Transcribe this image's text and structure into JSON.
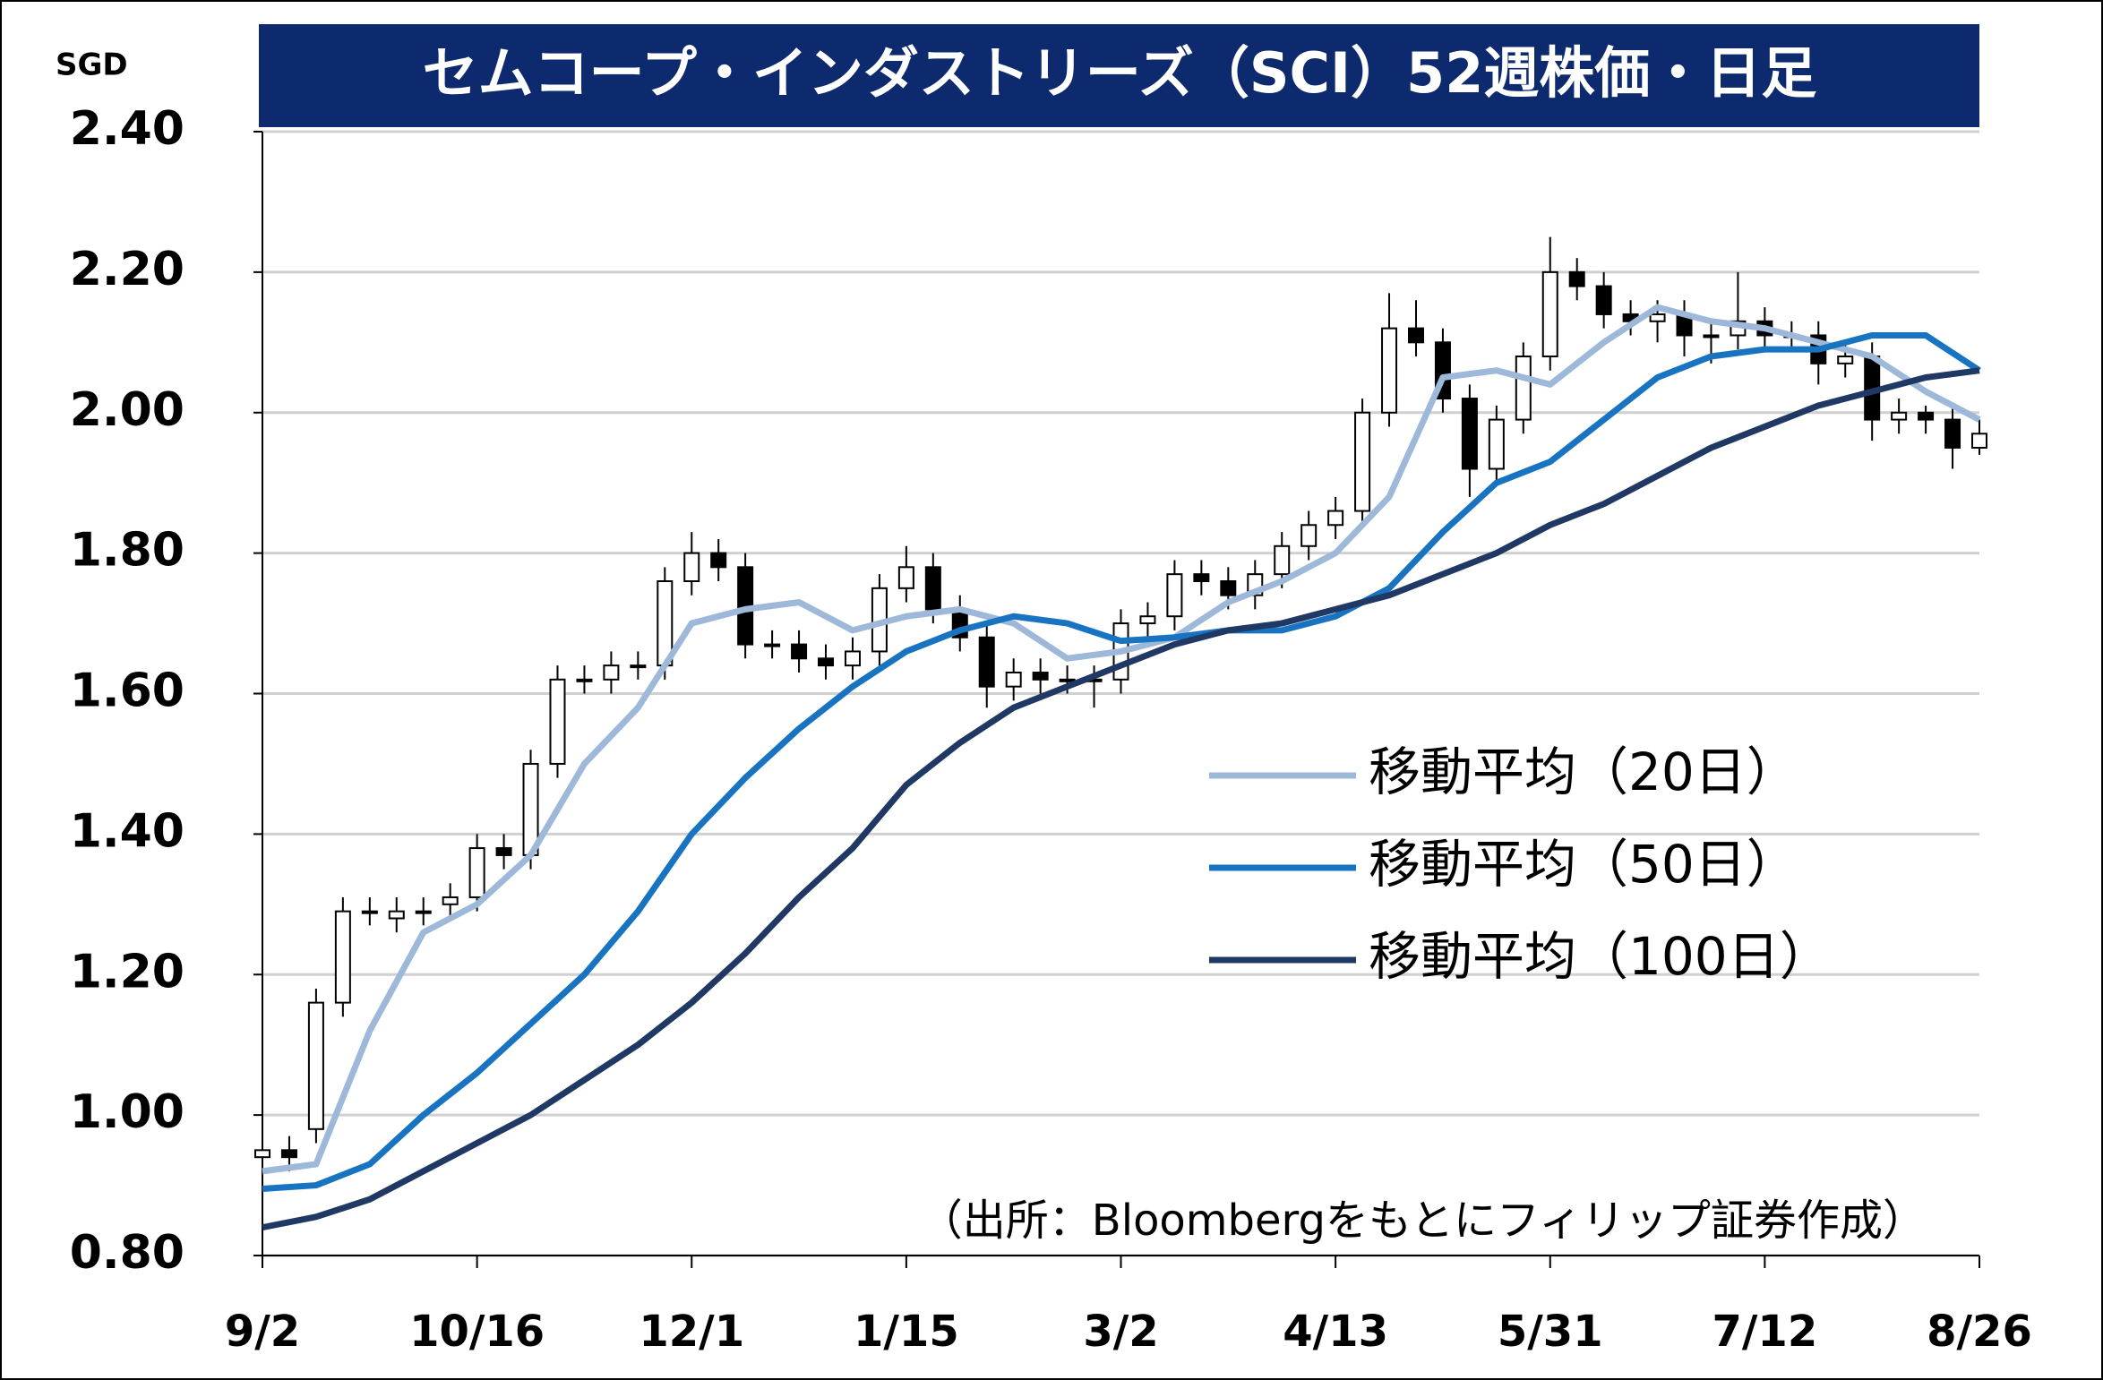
{
  "chart_data": {
    "type": "candlestick",
    "title": "セムコープ・インダストリーズ（SCI）52週株価・日足",
    "y_unit": "SGD",
    "source": "（出所：Bloombergをもとにフィリップ証券作成）",
    "xlim": [
      0,
      256
    ],
    "xticks": [
      {
        "value": 0,
        "label": "9/2"
      },
      {
        "value": 32,
        "label": "10/16"
      },
      {
        "value": 64,
        "label": "12/1"
      },
      {
        "value": 96,
        "label": "1/15"
      },
      {
        "value": 128,
        "label": "3/2"
      },
      {
        "value": 160,
        "label": "4/13"
      },
      {
        "value": 192,
        "label": "5/31"
      },
      {
        "value": 224,
        "label": "7/12"
      },
      {
        "value": 256,
        "label": "8/26"
      }
    ],
    "ylim": [
      0.8,
      2.4
    ],
    "yticks": [
      {
        "value": 0.8,
        "label": "0.80"
      },
      {
        "value": 1.0,
        "label": "1.00"
      },
      {
        "value": 1.2,
        "label": "1.20"
      },
      {
        "value": 1.4,
        "label": "1.40"
      },
      {
        "value": 1.6,
        "label": "1.60"
      },
      {
        "value": 1.8,
        "label": "1.80"
      },
      {
        "value": 2.0,
        "label": "2.00"
      },
      {
        "value": 2.2,
        "label": "2.20"
      },
      {
        "value": 2.4,
        "label": "2.40"
      }
    ],
    "grid": true,
    "legend": "right",
    "up_color": "#ffffff",
    "down_color": "#000000",
    "x": [
      0,
      4,
      8,
      12,
      16,
      20,
      24,
      28,
      32,
      36,
      40,
      44,
      48,
      52,
      56,
      60,
      64,
      68,
      72,
      76,
      80,
      84,
      88,
      92,
      96,
      100,
      104,
      108,
      112,
      116,
      120,
      124,
      128,
      132,
      136,
      140,
      144,
      148,
      152,
      156,
      160,
      164,
      168,
      172,
      176,
      180,
      184,
      188,
      192,
      196,
      200,
      204,
      208,
      212,
      216,
      220,
      224,
      228,
      232,
      236,
      240,
      244,
      248,
      252,
      256
    ],
    "open": [
      0.94,
      0.95,
      0.98,
      1.16,
      1.29,
      1.28,
      1.29,
      1.3,
      1.31,
      1.38,
      1.37,
      1.5,
      1.62,
      1.62,
      1.64,
      1.64,
      1.76,
      1.8,
      1.78,
      1.67,
      1.67,
      1.65,
      1.64,
      1.66,
      1.75,
      1.78,
      1.72,
      1.68,
      1.61,
      1.63,
      1.62,
      1.62,
      1.62,
      1.7,
      1.71,
      1.77,
      1.76,
      1.74,
      1.77,
      1.81,
      1.84,
      1.86,
      2.0,
      2.12,
      2.1,
      2.02,
      1.92,
      1.99,
      2.08,
      2.2,
      2.18,
      2.14,
      2.13,
      2.14,
      2.11,
      2.11,
      2.13,
      2.11,
      2.11,
      2.07,
      2.08,
      1.99,
      2.0,
      1.99,
      1.95
    ],
    "high": [
      0.97,
      0.97,
      1.18,
      1.31,
      1.31,
      1.31,
      1.31,
      1.33,
      1.4,
      1.4,
      1.52,
      1.64,
      1.64,
      1.66,
      1.66,
      1.78,
      1.83,
      1.82,
      1.8,
      1.69,
      1.69,
      1.67,
      1.68,
      1.77,
      1.81,
      1.8,
      1.74,
      1.7,
      1.65,
      1.65,
      1.64,
      1.64,
      1.72,
      1.73,
      1.79,
      1.79,
      1.78,
      1.79,
      1.83,
      1.86,
      1.88,
      2.02,
      2.17,
      2.16,
      2.12,
      2.04,
      2.01,
      2.1,
      2.25,
      2.22,
      2.2,
      2.16,
      2.16,
      2.16,
      2.13,
      2.2,
      2.15,
      2.13,
      2.13,
      2.1,
      2.1,
      2.02,
      2.01,
      2.01,
      1.99
    ],
    "low": [
      0.92,
      0.92,
      0.96,
      1.14,
      1.27,
      1.26,
      1.27,
      1.28,
      1.29,
      1.35,
      1.35,
      1.48,
      1.6,
      1.6,
      1.62,
      1.62,
      1.74,
      1.76,
      1.65,
      1.65,
      1.63,
      1.62,
      1.62,
      1.64,
      1.73,
      1.7,
      1.66,
      1.58,
      1.59,
      1.6,
      1.6,
      1.58,
      1.6,
      1.68,
      1.69,
      1.74,
      1.72,
      1.72,
      1.75,
      1.79,
      1.82,
      1.84,
      1.98,
      2.08,
      2.0,
      1.88,
      1.9,
      1.97,
      2.06,
      2.16,
      2.12,
      2.11,
      2.1,
      2.08,
      2.07,
      2.09,
      2.09,
      2.09,
      2.04,
      2.05,
      1.96,
      1.97,
      1.97,
      1.92,
      1.94
    ],
    "close": [
      0.95,
      0.94,
      1.16,
      1.29,
      1.29,
      1.29,
      1.29,
      1.31,
      1.38,
      1.37,
      1.5,
      1.62,
      1.62,
      1.64,
      1.64,
      1.76,
      1.8,
      1.78,
      1.67,
      1.67,
      1.65,
      1.64,
      1.66,
      1.75,
      1.78,
      1.72,
      1.68,
      1.61,
      1.63,
      1.62,
      1.62,
      1.62,
      1.7,
      1.71,
      1.77,
      1.76,
      1.74,
      1.77,
      1.81,
      1.84,
      1.86,
      2.0,
      2.12,
      2.1,
      2.02,
      1.92,
      1.99,
      2.08,
      2.2,
      2.18,
      2.14,
      2.13,
      2.14,
      2.11,
      2.11,
      2.13,
      2.11,
      2.11,
      2.07,
      2.08,
      1.99,
      2.0,
      1.99,
      1.95,
      1.97
    ],
    "series": [
      {
        "name": "移動平均（20日）",
        "color": "#9db8d9",
        "x": [
          0,
          8,
          16,
          24,
          32,
          40,
          48,
          56,
          64,
          72,
          80,
          88,
          96,
          104,
          112,
          120,
          128,
          136,
          144,
          152,
          160,
          168,
          176,
          184,
          192,
          200,
          208,
          216,
          224,
          232,
          240,
          248,
          256
        ],
        "values": [
          0.92,
          0.93,
          1.12,
          1.26,
          1.3,
          1.37,
          1.5,
          1.58,
          1.7,
          1.72,
          1.73,
          1.69,
          1.71,
          1.72,
          1.7,
          1.65,
          1.66,
          1.68,
          1.73,
          1.76,
          1.8,
          1.88,
          2.05,
          2.06,
          2.04,
          2.1,
          2.15,
          2.13,
          2.12,
          2.1,
          2.08,
          2.03,
          1.99
        ]
      },
      {
        "name": "移動平均（50日）",
        "color": "#1874c1",
        "x": [
          0,
          8,
          16,
          24,
          32,
          40,
          48,
          56,
          64,
          72,
          80,
          88,
          96,
          104,
          112,
          120,
          128,
          136,
          144,
          152,
          160,
          168,
          176,
          184,
          192,
          200,
          208,
          216,
          224,
          232,
          240,
          248,
          256
        ],
        "values": [
          0.895,
          0.9,
          0.93,
          1.0,
          1.06,
          1.13,
          1.2,
          1.29,
          1.4,
          1.48,
          1.55,
          1.61,
          1.66,
          1.69,
          1.71,
          1.7,
          1.675,
          1.68,
          1.69,
          1.69,
          1.71,
          1.75,
          1.83,
          1.9,
          1.93,
          1.99,
          2.05,
          2.08,
          2.09,
          2.09,
          2.11,
          2.11,
          2.06
        ]
      },
      {
        "name": "移動平均（100日）",
        "color": "#1f3864",
        "x": [
          0,
          8,
          16,
          24,
          32,
          40,
          48,
          56,
          64,
          72,
          80,
          88,
          96,
          104,
          112,
          120,
          128,
          136,
          144,
          152,
          160,
          168,
          176,
          184,
          192,
          200,
          208,
          216,
          224,
          232,
          240,
          248,
          256
        ],
        "values": [
          0.84,
          0.855,
          0.88,
          0.92,
          0.96,
          1.0,
          1.05,
          1.1,
          1.16,
          1.23,
          1.31,
          1.38,
          1.47,
          1.53,
          1.58,
          1.61,
          1.64,
          1.67,
          1.69,
          1.7,
          1.72,
          1.74,
          1.77,
          1.8,
          1.84,
          1.87,
          1.91,
          1.95,
          1.98,
          2.01,
          2.03,
          2.05,
          2.06
        ]
      }
    ]
  }
}
